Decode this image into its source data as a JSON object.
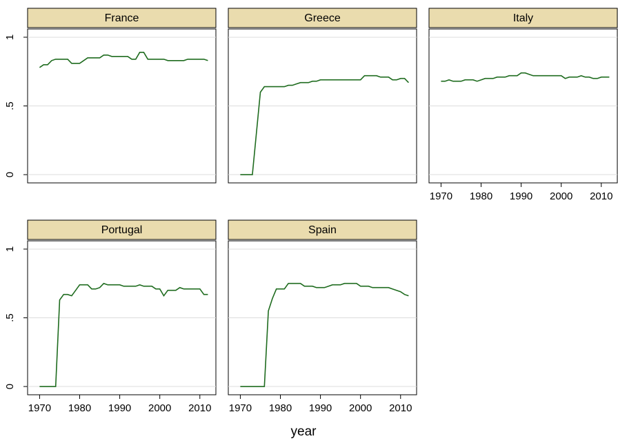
{
  "x_label": "year",
  "chart_data": [
    {
      "type": "line",
      "title": "France",
      "color": "#1e6b1e",
      "grid": true,
      "xlim": [
        1967,
        2014
      ],
      "ylim": [
        -0.06,
        1.06
      ],
      "yticks": [
        0,
        {
          "value": 0.5,
          "label": ".5"
        },
        1
      ],
      "show_ytick_labels": true,
      "x": [
        1970,
        1971,
        1972,
        1973,
        1974,
        1975,
        1976,
        1977,
        1978,
        1979,
        1980,
        1981,
        1982,
        1983,
        1984,
        1985,
        1986,
        1987,
        1988,
        1989,
        1990,
        1991,
        1992,
        1993,
        1994,
        1995,
        1996,
        1997,
        1998,
        1999,
        2000,
        2001,
        2002,
        2003,
        2004,
        2005,
        2006,
        2007,
        2008,
        2009,
        2010,
        2011,
        2012
      ],
      "values": [
        0.78,
        0.8,
        0.8,
        0.83,
        0.84,
        0.84,
        0.84,
        0.84,
        0.81,
        0.81,
        0.81,
        0.83,
        0.85,
        0.85,
        0.85,
        0.85,
        0.87,
        0.87,
        0.86,
        0.86,
        0.86,
        0.86,
        0.86,
        0.84,
        0.84,
        0.89,
        0.89,
        0.84,
        0.84,
        0.84,
        0.84,
        0.84,
        0.83,
        0.83,
        0.83,
        0.83,
        0.83,
        0.84,
        0.84,
        0.84,
        0.84,
        0.84,
        0.83
      ]
    },
    {
      "type": "line",
      "title": "Greece",
      "color": "#1e6b1e",
      "grid": true,
      "xlim": [
        1967,
        2014
      ],
      "ylim": [
        -0.06,
        1.06
      ],
      "yticks": [
        0,
        {
          "value": 0.5,
          "label": ".5"
        },
        1
      ],
      "show_ytick_labels": false,
      "x": [
        1970,
        1971,
        1972,
        1973,
        1974,
        1975,
        1976,
        1977,
        1978,
        1979,
        1980,
        1981,
        1982,
        1983,
        1984,
        1985,
        1986,
        1987,
        1988,
        1989,
        1990,
        1991,
        1992,
        1993,
        1994,
        1995,
        1996,
        1997,
        1998,
        1999,
        2000,
        2001,
        2002,
        2003,
        2004,
        2005,
        2006,
        2007,
        2008,
        2009,
        2010,
        2011,
        2012
      ],
      "values": [
        0,
        0,
        0,
        0,
        0.3,
        0.6,
        0.64,
        0.64,
        0.64,
        0.64,
        0.64,
        0.64,
        0.65,
        0.65,
        0.66,
        0.67,
        0.67,
        0.67,
        0.68,
        0.68,
        0.69,
        0.69,
        0.69,
        0.69,
        0.69,
        0.69,
        0.69,
        0.69,
        0.69,
        0.69,
        0.69,
        0.72,
        0.72,
        0.72,
        0.72,
        0.71,
        0.71,
        0.71,
        0.69,
        0.69,
        0.7,
        0.7,
        0.67
      ]
    },
    {
      "type": "line",
      "title": "Italy",
      "color": "#1e6b1e",
      "grid": true,
      "xlim": [
        1967,
        2014
      ],
      "ylim": [
        -0.06,
        1.06
      ],
      "xticks": [
        1970,
        1980,
        1990,
        2000,
        2010
      ],
      "yticks": [
        0,
        {
          "value": 0.5,
          "label": ".5"
        },
        1
      ],
      "show_ytick_labels": false,
      "x": [
        1970,
        1971,
        1972,
        1973,
        1974,
        1975,
        1976,
        1977,
        1978,
        1979,
        1980,
        1981,
        1982,
        1983,
        1984,
        1985,
        1986,
        1987,
        1988,
        1989,
        1990,
        1991,
        1992,
        1993,
        1994,
        1995,
        1996,
        1997,
        1998,
        1999,
        2000,
        2001,
        2002,
        2003,
        2004,
        2005,
        2006,
        2007,
        2008,
        2009,
        2010,
        2011,
        2012
      ],
      "values": [
        0.68,
        0.68,
        0.69,
        0.68,
        0.68,
        0.68,
        0.69,
        0.69,
        0.69,
        0.68,
        0.69,
        0.7,
        0.7,
        0.7,
        0.71,
        0.71,
        0.71,
        0.72,
        0.72,
        0.72,
        0.74,
        0.74,
        0.73,
        0.72,
        0.72,
        0.72,
        0.72,
        0.72,
        0.72,
        0.72,
        0.72,
        0.7,
        0.71,
        0.71,
        0.71,
        0.72,
        0.71,
        0.71,
        0.7,
        0.7,
        0.71,
        0.71,
        0.71
      ]
    },
    {
      "type": "line",
      "title": "Portugal",
      "color": "#1e6b1e",
      "grid": true,
      "xlim": [
        1967,
        2014
      ],
      "ylim": [
        -0.06,
        1.06
      ],
      "xticks": [
        1970,
        1980,
        1990,
        2000,
        2010
      ],
      "yticks": [
        0,
        {
          "value": 0.5,
          "label": ".5"
        },
        1
      ],
      "show_ytick_labels": true,
      "x": [
        1970,
        1971,
        1972,
        1973,
        1974,
        1975,
        1976,
        1977,
        1978,
        1979,
        1980,
        1981,
        1982,
        1983,
        1984,
        1985,
        1986,
        1987,
        1988,
        1989,
        1990,
        1991,
        1992,
        1993,
        1994,
        1995,
        1996,
        1997,
        1998,
        1999,
        2000,
        2001,
        2002,
        2003,
        2004,
        2005,
        2006,
        2007,
        2008,
        2009,
        2010,
        2011,
        2012
      ],
      "values": [
        0,
        0,
        0,
        0,
        0,
        0.63,
        0.67,
        0.67,
        0.66,
        0.7,
        0.74,
        0.74,
        0.74,
        0.71,
        0.71,
        0.72,
        0.75,
        0.74,
        0.74,
        0.74,
        0.74,
        0.73,
        0.73,
        0.73,
        0.73,
        0.74,
        0.73,
        0.73,
        0.73,
        0.71,
        0.71,
        0.66,
        0.7,
        0.7,
        0.7,
        0.72,
        0.71,
        0.71,
        0.71,
        0.71,
        0.71,
        0.67,
        0.67
      ]
    },
    {
      "type": "line",
      "title": "Spain",
      "color": "#1e6b1e",
      "grid": true,
      "xlim": [
        1967,
        2014
      ],
      "ylim": [
        -0.06,
        1.06
      ],
      "xticks": [
        1970,
        1980,
        1990,
        2000,
        2010
      ],
      "yticks": [
        0,
        {
          "value": 0.5,
          "label": ".5"
        },
        1
      ],
      "show_ytick_labels": false,
      "x": [
        1970,
        1971,
        1972,
        1973,
        1974,
        1975,
        1976,
        1977,
        1978,
        1979,
        1980,
        1981,
        1982,
        1983,
        1984,
        1985,
        1986,
        1987,
        1988,
        1989,
        1990,
        1991,
        1992,
        1993,
        1994,
        1995,
        1996,
        1997,
        1998,
        1999,
        2000,
        2001,
        2002,
        2003,
        2004,
        2005,
        2006,
        2007,
        2008,
        2009,
        2010,
        2011,
        2012
      ],
      "values": [
        0,
        0,
        0,
        0,
        0,
        0,
        0,
        0.55,
        0.64,
        0.71,
        0.71,
        0.71,
        0.75,
        0.75,
        0.75,
        0.75,
        0.73,
        0.73,
        0.73,
        0.72,
        0.72,
        0.72,
        0.73,
        0.74,
        0.74,
        0.74,
        0.75,
        0.75,
        0.75,
        0.75,
        0.73,
        0.73,
        0.73,
        0.72,
        0.72,
        0.72,
        0.72,
        0.72,
        0.71,
        0.7,
        0.69,
        0.67,
        0.66
      ]
    }
  ]
}
